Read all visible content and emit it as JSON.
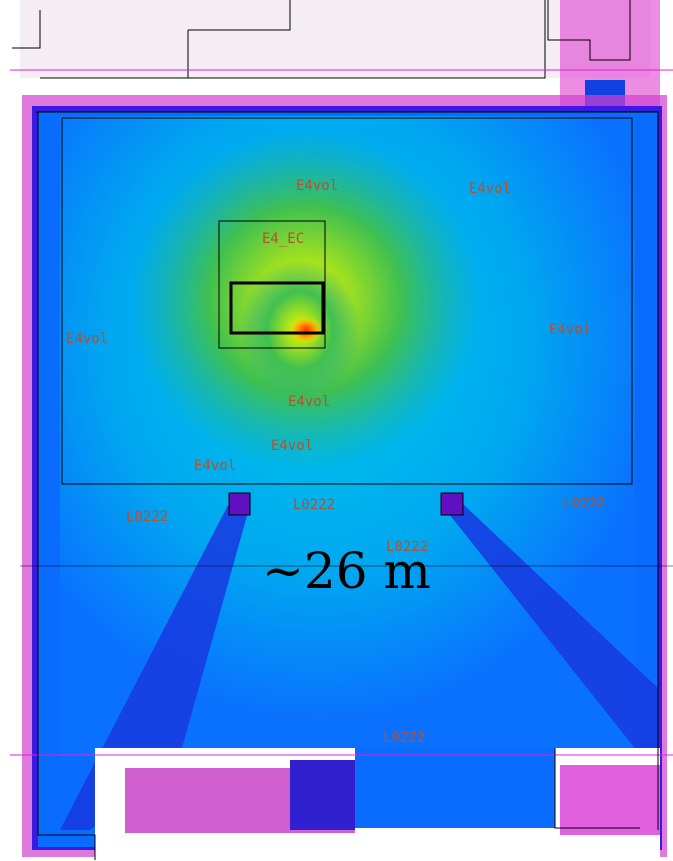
{
  "labels": [
    "E4vol",
    "E4vol",
    "E4_EC",
    "E4vol",
    "E4vol",
    "E4vol",
    "E4vol",
    "E4vol",
    "L0222",
    "L0222",
    "L0222",
    "L0222",
    "L0222"
  ],
  "scale_label": "~26 m"
}
